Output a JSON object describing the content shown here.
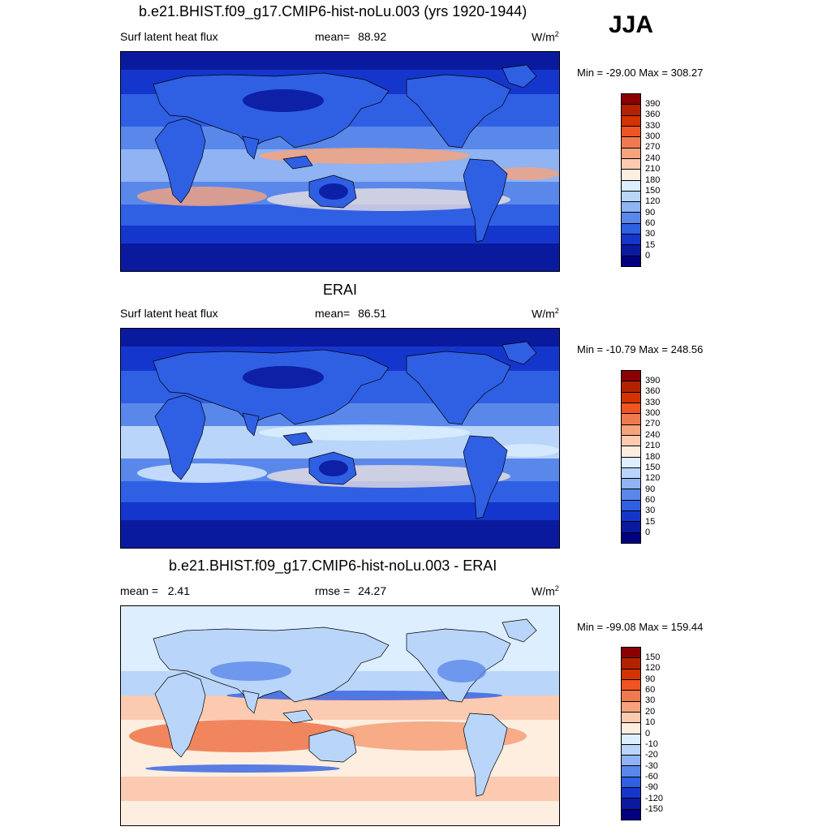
{
  "season": "JJA",
  "panels": [
    {
      "id": "model",
      "title": "b.e21.BHIST.f09_g17.CMIP6-hist-noLu.003 (yrs 1920-1944)",
      "left_label": "Surf latent heat flux",
      "center_label": "mean=",
      "center_value": "88.92",
      "units_base": "W/m",
      "units_exp": "2",
      "minmax": "Min = -29.00 Max = 308.27"
    },
    {
      "id": "obs",
      "title": "ERAI",
      "left_label": "Surf latent heat flux",
      "center_label": "mean=",
      "center_value": "86.51",
      "units_base": "W/m",
      "units_exp": "2",
      "minmax": "Min = -10.79 Max = 248.56"
    },
    {
      "id": "diff",
      "title": "b.e21.BHIST.f09_g17.CMIP6-hist-noLu.003 - ERAI",
      "left_label": "mean =   2.41",
      "center_label": "rmse =",
      "center_value": "24.27",
      "units_base": "W/m",
      "units_exp": "2",
      "minmax": "Min = -99.08 Max = 159.44"
    }
  ],
  "colorbars": {
    "abs": {
      "labels": [
        "390",
        "360",
        "330",
        "300",
        "270",
        "240",
        "210",
        "180",
        "150",
        "120",
        "90",
        "60",
        "30",
        "15",
        "0"
      ],
      "colors": [
        "#8b0000",
        "#b22200",
        "#d33300",
        "#ee5522",
        "#f07a50",
        "#f6a37d",
        "#fbcab0",
        "#fdeee0",
        "#dceeff",
        "#b9d5fa",
        "#8fb3f3",
        "#5a88ea",
        "#2f5fe3",
        "#1536cc",
        "#0a1a9e",
        "#000080"
      ]
    },
    "diff": {
      "labels": [
        "150",
        "120",
        "90",
        "60",
        "30",
        "20",
        "10",
        "0",
        "-10",
        "-20",
        "-30",
        "-60",
        "-90",
        "-120",
        "-150"
      ],
      "colors": [
        "#8b0000",
        "#b22200",
        "#d33300",
        "#ee5522",
        "#f07a50",
        "#f6a37d",
        "#fbcab0",
        "#fdeee0",
        "#dceeff",
        "#b9d5fa",
        "#8fb3f3",
        "#5a88ea",
        "#2f5fe3",
        "#1536cc",
        "#0a1a9e",
        "#000080"
      ]
    }
  },
  "map_palette": {
    "deep": "#0a1a9e",
    "dark": "#1536cc",
    "mid": "#2f5fe3",
    "light": "#5a88ea",
    "pale": "#8fb3f3",
    "paler": "#b9d5fa",
    "faint": "#dceeff",
    "cream": "#fdeee0",
    "peach": "#fbcab0",
    "salmon": "#f6a37d",
    "orange": "#f07a50",
    "red": "#ee5522",
    "dred": "#d33300",
    "coast": "#000000"
  }
}
